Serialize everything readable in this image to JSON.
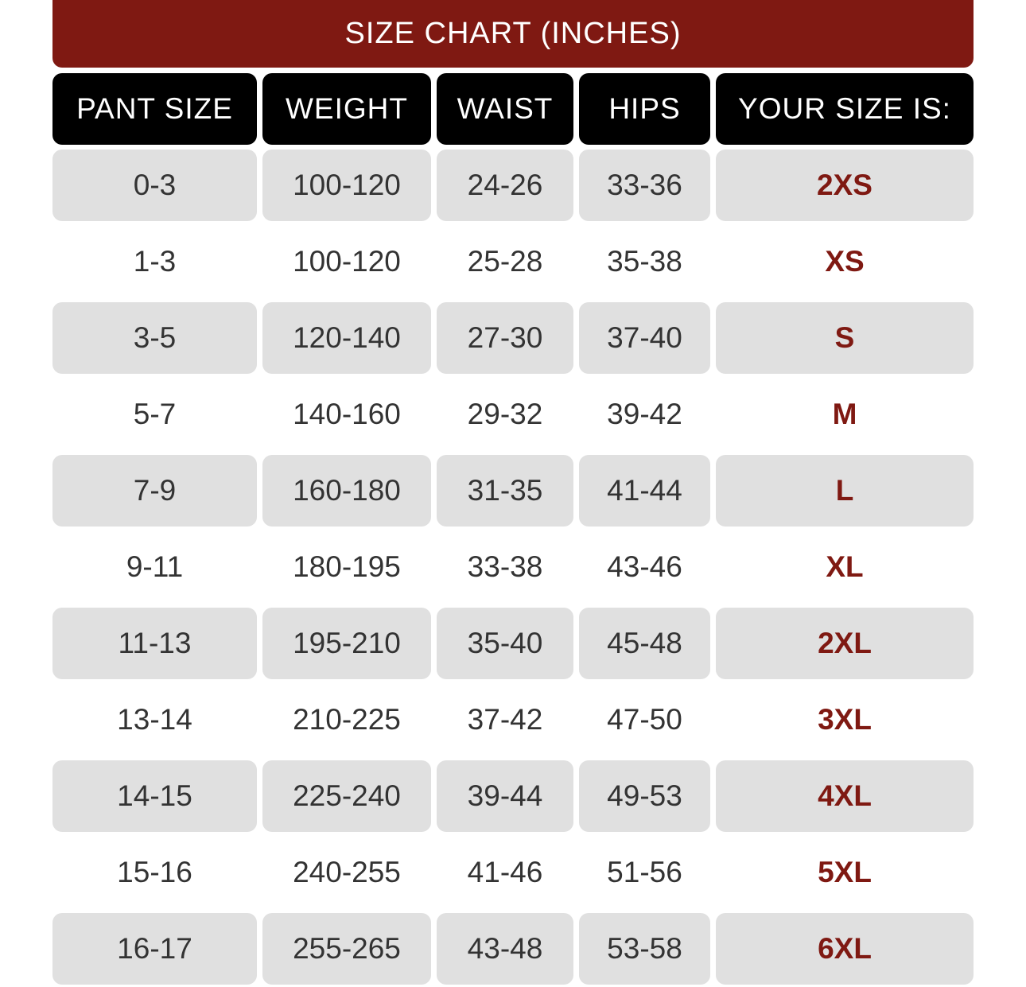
{
  "title": "SIZE CHART (INCHES)",
  "headers": [
    "PANT SIZE",
    "WEIGHT",
    "WAIST",
    "HIPS",
    "YOUR SIZE IS:"
  ],
  "colors": {
    "brand": "#7f1912",
    "header_bg": "#000000",
    "shade": "#e0e0e0"
  },
  "rows": [
    [
      "0-3",
      "100-120",
      "24-26",
      "33-36",
      "2XS"
    ],
    [
      "1-3",
      "100-120",
      "25-28",
      "35-38",
      "XS"
    ],
    [
      "3-5",
      "120-140",
      "27-30",
      "37-40",
      "S"
    ],
    [
      "5-7",
      "140-160",
      "29-32",
      "39-42",
      "M"
    ],
    [
      "7-9",
      "160-180",
      "31-35",
      "41-44",
      "L"
    ],
    [
      "9-11",
      "180-195",
      "33-38",
      "43-46",
      "XL"
    ],
    [
      "11-13",
      "195-210",
      "35-40",
      "45-48",
      "2XL"
    ],
    [
      "13-14",
      "210-225",
      "37-42",
      "47-50",
      "3XL"
    ],
    [
      "14-15",
      "225-240",
      "39-44",
      "49-53",
      "4XL"
    ],
    [
      "15-16",
      "240-255",
      "41-46",
      "51-56",
      "5XL"
    ],
    [
      "16-17",
      "255-265",
      "43-48",
      "53-58",
      "6XL"
    ]
  ]
}
